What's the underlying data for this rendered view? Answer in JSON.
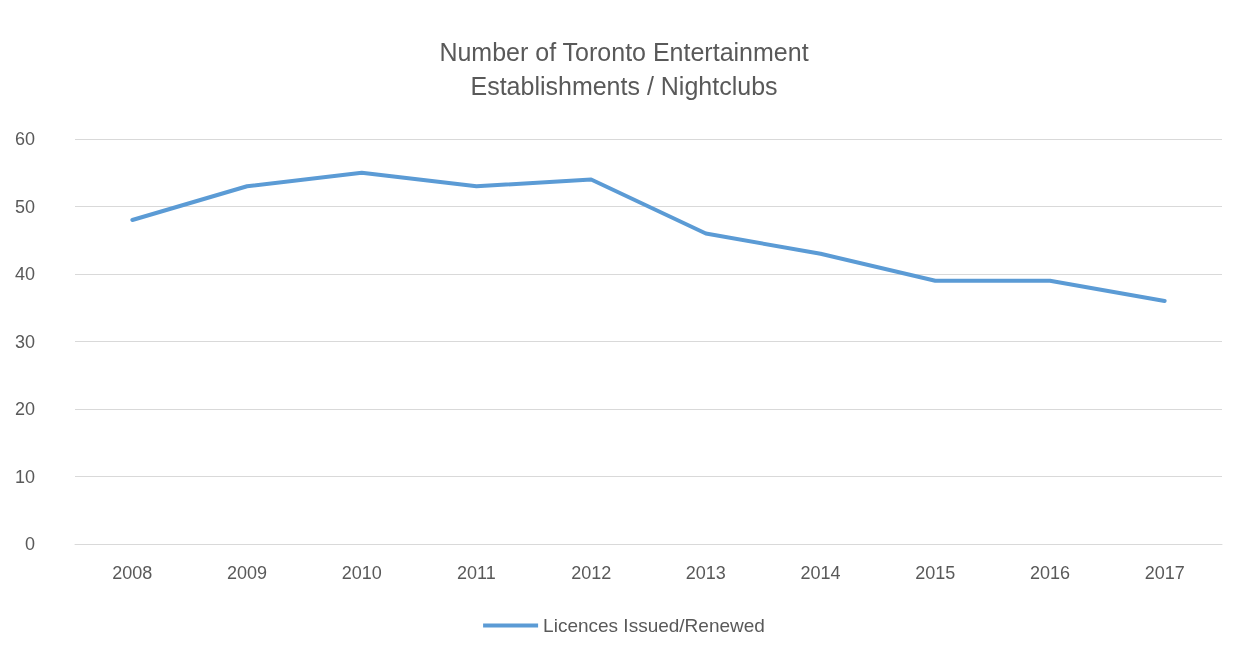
{
  "chart_data": {
    "type": "line",
    "title": "Number of Toronto Entertainment\nEstablishments / Nightclubs",
    "categories": [
      "2008",
      "2009",
      "2010",
      "2011",
      "2012",
      "2013",
      "2014",
      "2015",
      "2016",
      "2017"
    ],
    "series": [
      {
        "name": "Licences Issued/Renewed",
        "color": "#5b9bd5",
        "values": [
          48,
          53,
          55,
          53,
          54,
          46,
          43,
          39,
          39,
          36
        ]
      }
    ],
    "ylim": [
      0,
      60
    ],
    "yticks": [
      0,
      10,
      20,
      30,
      40,
      50,
      60
    ],
    "grid": "y",
    "legend": "bottom",
    "marker": "none",
    "line_style": "solid"
  }
}
